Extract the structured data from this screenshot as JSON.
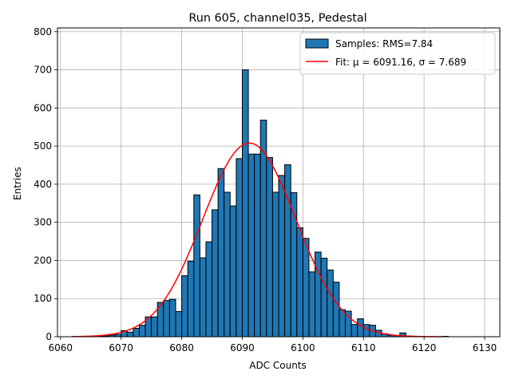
{
  "chart_data": {
    "type": "bar",
    "title": "Run 605, channel035, Pedestal",
    "xlabel": "ADC Counts",
    "ylabel": "Entries",
    "xlim": [
      6059.5,
      6132.5
    ],
    "ylim": [
      0,
      810
    ],
    "xticks": [
      6060,
      6070,
      6080,
      6090,
      6100,
      6110,
      6120,
      6130
    ],
    "yticks": [
      0,
      100,
      200,
      300,
      400,
      500,
      600,
      700,
      800
    ],
    "grid": true,
    "legend_position": "top-right",
    "bin_edges_start": 6062,
    "bin_width": 1,
    "bars": [
      {
        "x": 6062,
        "y": 1
      },
      {
        "x": 6063,
        "y": 0
      },
      {
        "x": 6064,
        "y": 0
      },
      {
        "x": 6065,
        "y": 0
      },
      {
        "x": 6066,
        "y": 1
      },
      {
        "x": 6067,
        "y": 2
      },
      {
        "x": 6068,
        "y": 4
      },
      {
        "x": 6069,
        "y": 6
      },
      {
        "x": 6070,
        "y": 16
      },
      {
        "x": 6071,
        "y": 12
      },
      {
        "x": 6072,
        "y": 22
      },
      {
        "x": 6073,
        "y": 30
      },
      {
        "x": 6074,
        "y": 52
      },
      {
        "x": 6075,
        "y": 52
      },
      {
        "x": 6076,
        "y": 90
      },
      {
        "x": 6077,
        "y": 95
      },
      {
        "x": 6078,
        "y": 98
      },
      {
        "x": 6079,
        "y": 66
      },
      {
        "x": 6080,
        "y": 160
      },
      {
        "x": 6081,
        "y": 198
      },
      {
        "x": 6082,
        "y": 372
      },
      {
        "x": 6083,
        "y": 207
      },
      {
        "x": 6084,
        "y": 249
      },
      {
        "x": 6085,
        "y": 333
      },
      {
        "x": 6086,
        "y": 441
      },
      {
        "x": 6087,
        "y": 379
      },
      {
        "x": 6088,
        "y": 343
      },
      {
        "x": 6089,
        "y": 467
      },
      {
        "x": 6090,
        "y": 700
      },
      {
        "x": 6091,
        "y": 479
      },
      {
        "x": 6092,
        "y": 479
      },
      {
        "x": 6093,
        "y": 568
      },
      {
        "x": 6094,
        "y": 470
      },
      {
        "x": 6095,
        "y": 379
      },
      {
        "x": 6096,
        "y": 423
      },
      {
        "x": 6097,
        "y": 451
      },
      {
        "x": 6098,
        "y": 378
      },
      {
        "x": 6099,
        "y": 286
      },
      {
        "x": 6100,
        "y": 258
      },
      {
        "x": 6101,
        "y": 170
      },
      {
        "x": 6102,
        "y": 222
      },
      {
        "x": 6103,
        "y": 206
      },
      {
        "x": 6104,
        "y": 175
      },
      {
        "x": 6105,
        "y": 143
      },
      {
        "x": 6106,
        "y": 71
      },
      {
        "x": 6107,
        "y": 67
      },
      {
        "x": 6108,
        "y": 32
      },
      {
        "x": 6109,
        "y": 47
      },
      {
        "x": 6110,
        "y": 32
      },
      {
        "x": 6111,
        "y": 30
      },
      {
        "x": 6112,
        "y": 17
      },
      {
        "x": 6113,
        "y": 8
      },
      {
        "x": 6114,
        "y": 4
      },
      {
        "x": 6115,
        "y": 3
      },
      {
        "x": 6116,
        "y": 10
      },
      {
        "x": 6117,
        "y": 2
      },
      {
        "x": 6118,
        "y": 1
      },
      {
        "x": 6119,
        "y": 1
      },
      {
        "x": 6120,
        "y": 0
      },
      {
        "x": 6121,
        "y": 0
      },
      {
        "x": 6122,
        "y": 0
      },
      {
        "x": 6123,
        "y": 1
      }
    ],
    "fit": {
      "mu": 6091.16,
      "sigma": 7.689,
      "amplitude": 508,
      "x_start": 6062,
      "x_end": 6123
    },
    "series": [
      {
        "name": "Samples: RMS=7.84",
        "type": "bar",
        "color": "#1f77b4"
      },
      {
        "name": "Fit: μ = 6091.16, σ = 7.689",
        "type": "line",
        "color": "#ff0000"
      }
    ]
  }
}
